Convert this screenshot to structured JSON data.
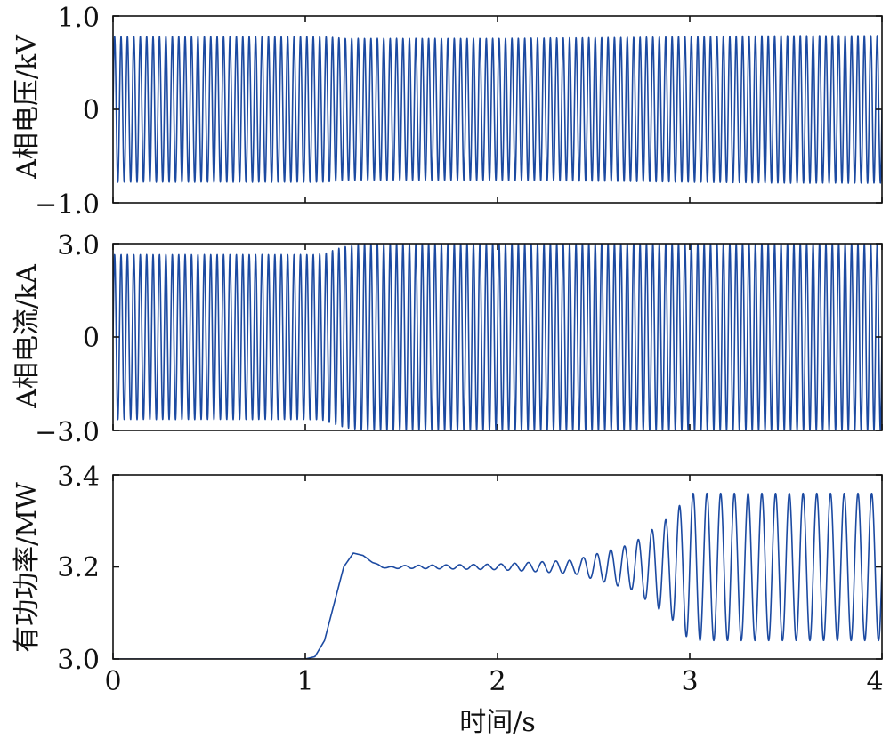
{
  "chart_data": [
    {
      "type": "line",
      "ylabel": "A相电压/kV",
      "ylim": [
        -1.0,
        1.0
      ],
      "yticks": [
        -1.0,
        0,
        1.0
      ],
      "ytick_labels": [
        "−1.0",
        "0",
        "1.0"
      ],
      "xlim": [
        0,
        4
      ],
      "signal": "sinusoid",
      "oscillation_hz": 30,
      "color": "#1c4aa1",
      "envelope": {
        "t": [
          0,
          1.1,
          1.2,
          2.0,
          2.6,
          3.0,
          3.5,
          4.0
        ],
        "amplitude": [
          0.78,
          0.78,
          0.76,
          0.76,
          0.77,
          0.78,
          0.79,
          0.79
        ]
      }
    },
    {
      "type": "line",
      "ylabel": "A相电流/kA",
      "ylim": [
        -3.0,
        3.0
      ],
      "yticks": [
        -3.0,
        0,
        3.0
      ],
      "ytick_labels": [
        "−3.0",
        "0",
        "3.0"
      ],
      "xlim": [
        0,
        4
      ],
      "signal": "sinusoid",
      "oscillation_hz": 30,
      "color": "#1c4aa1",
      "envelope": {
        "t": [
          0,
          1.05,
          1.1,
          1.15,
          1.2,
          1.3,
          4.0
        ],
        "amplitude": [
          2.65,
          2.65,
          2.68,
          2.8,
          2.9,
          3.0,
          3.0
        ]
      }
    },
    {
      "type": "line",
      "ylabel": "有功功率/MW",
      "xlabel": "时间/s",
      "ylim": [
        3.0,
        3.4
      ],
      "yticks": [
        3.0,
        3.2,
        3.4
      ],
      "ytick_labels": [
        "3.0",
        "3.2",
        "3.4"
      ],
      "xlim": [
        0,
        4
      ],
      "xticks": [
        0,
        1,
        2,
        3,
        4
      ],
      "xtick_labels": [
        "0",
        "1",
        "2",
        "3",
        "4"
      ],
      "color": "#1c4aa1",
      "baseline": {
        "t": [
          0,
          1.0,
          1.05,
          1.1,
          1.15,
          1.2,
          1.25,
          1.3,
          1.35,
          1.4,
          1.45,
          1.5,
          4.0
        ],
        "value": [
          3.0,
          3.0,
          3.005,
          3.04,
          3.12,
          3.2,
          3.23,
          3.225,
          3.21,
          3.2,
          3.198,
          3.2,
          3.2
        ]
      },
      "oscillation": {
        "frequency_hz": 14,
        "t": [
          0,
          1.3,
          1.5,
          2.0,
          2.4,
          2.7,
          2.9,
          3.0,
          4.0
        ],
        "amplitude": [
          0,
          0,
          0.003,
          0.006,
          0.015,
          0.05,
          0.11,
          0.16,
          0.16
        ]
      }
    }
  ]
}
